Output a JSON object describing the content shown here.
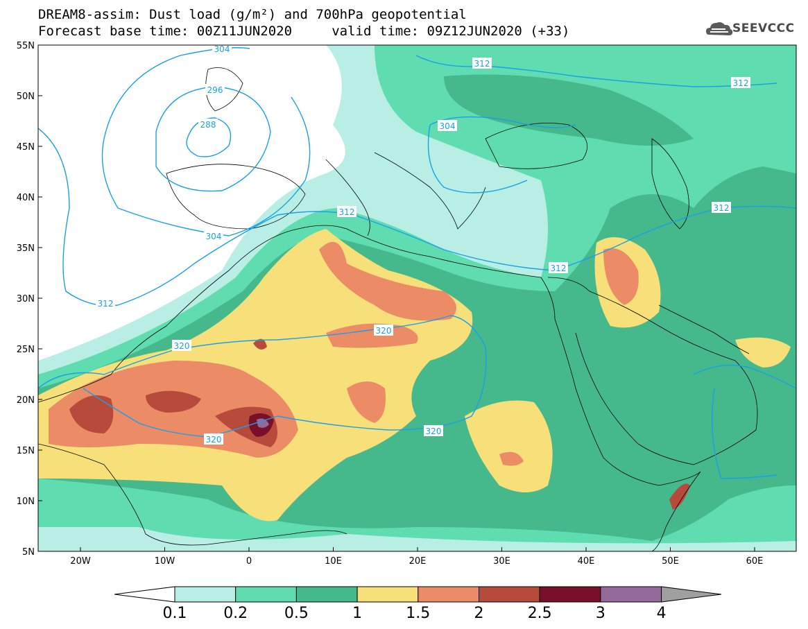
{
  "title_line1": "DREAM8-assim: Dust load (g/m²) and 700hPa geopotential",
  "title_line2": "Forecast base time: 00Z11JUN2020     valid time: 09Z12JUN2020 (+33)",
  "logo_text": "SEEVCCC",
  "logo_icon": "cloud-icon",
  "lat_labels": [
    "55N",
    "50N",
    "45N",
    "40N",
    "35N",
    "30N",
    "25N",
    "20N",
    "15N",
    "10N",
    "5N"
  ],
  "lon_labels": [
    "20W",
    "10W",
    "0",
    "10E",
    "20E",
    "30E",
    "40E",
    "50E",
    "60E"
  ],
  "contour_labels": [
    "304",
    "296",
    "288",
    "304",
    "312",
    "312",
    "312",
    "304",
    "312",
    "312",
    "312",
    "320",
    "320",
    "320",
    "320"
  ],
  "colorbar": {
    "labels": [
      "0.1",
      "0.2",
      "0.5",
      "1",
      "1.5",
      "2",
      "2.5",
      "3",
      "4"
    ],
    "colors": [
      "#b8eee4",
      "#5fdcb0",
      "#45b88c",
      "#f7e07a",
      "#ec8c66",
      "#b84a3c",
      "#7a0f2a",
      "#94699c"
    ],
    "below_color": "#ffffff",
    "above_color": "#a0a0a0"
  },
  "colors": {
    "geopotential_contour": "#1aa0e8",
    "coastline": "#000000"
  }
}
